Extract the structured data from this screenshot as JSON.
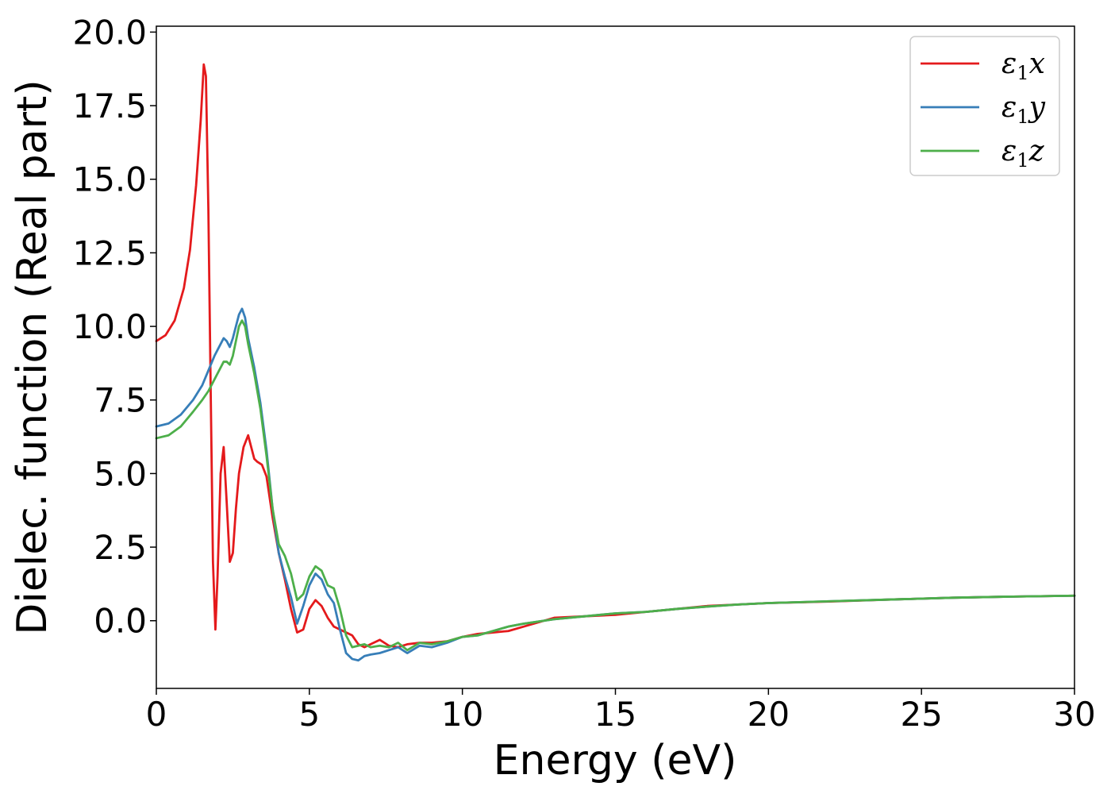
{
  "chart_data": {
    "type": "line",
    "title": "",
    "xlabel": "Energy (eV)",
    "ylabel": "Dielec. function (Real part)",
    "xlim": [
      0,
      30
    ],
    "ylim": [
      -2.3,
      20.2
    ],
    "xticks": [
      0,
      5,
      10,
      15,
      20,
      25,
      30
    ],
    "xtick_labels": [
      "0",
      "5",
      "10",
      "15",
      "20",
      "25",
      "30"
    ],
    "yticks": [
      0.0,
      2.5,
      5.0,
      7.5,
      10.0,
      12.5,
      15.0,
      17.5,
      20.0
    ],
    "ytick_labels": [
      "0.0",
      "2.5",
      "5.0",
      "7.5",
      "10.0",
      "12.5",
      "15.0",
      "17.5",
      "20.0"
    ],
    "grid": false,
    "legend_position": "top-right",
    "series": [
      {
        "name": "ε₁x",
        "legend_base": "ε",
        "legend_sub": "1",
        "legend_var": "x",
        "color": "#e41a1c",
        "x": [
          0,
          0.3,
          0.6,
          0.9,
          1.1,
          1.3,
          1.45,
          1.55,
          1.62,
          1.7,
          1.78,
          1.85,
          1.93,
          2.0,
          2.1,
          2.2,
          2.3,
          2.4,
          2.5,
          2.6,
          2.7,
          2.85,
          3.0,
          3.1,
          3.2,
          3.3,
          3.45,
          3.6,
          3.8,
          4.0,
          4.2,
          4.4,
          4.6,
          4.8,
          5.0,
          5.2,
          5.4,
          5.6,
          5.8,
          6.0,
          6.2,
          6.4,
          6.6,
          6.8,
          7.0,
          7.3,
          7.6,
          7.9,
          8.2,
          8.6,
          9.0,
          9.5,
          10.0,
          10.5,
          11.0,
          11.5,
          12.0,
          13.0,
          14.0,
          15.0,
          16.0,
          17.0,
          18.0,
          19.0,
          20.0,
          22.0,
          24.0,
          26.0,
          28.0,
          30.0
        ],
        "y": [
          9.5,
          9.7,
          10.2,
          11.3,
          12.6,
          14.8,
          17.0,
          18.9,
          18.5,
          14.0,
          7.5,
          2.0,
          -0.3,
          1.5,
          5.0,
          5.9,
          4.0,
          2.0,
          2.3,
          3.8,
          5.0,
          5.9,
          6.3,
          5.9,
          5.5,
          5.4,
          5.3,
          4.9,
          3.5,
          2.3,
          1.4,
          0.4,
          -0.4,
          -0.3,
          0.4,
          0.7,
          0.5,
          0.1,
          -0.2,
          -0.3,
          -0.4,
          -0.5,
          -0.8,
          -0.9,
          -0.8,
          -0.65,
          -0.85,
          -0.9,
          -0.8,
          -0.75,
          -0.75,
          -0.7,
          -0.55,
          -0.45,
          -0.4,
          -0.35,
          -0.2,
          0.1,
          0.15,
          0.2,
          0.3,
          0.4,
          0.5,
          0.55,
          0.6,
          0.65,
          0.72,
          0.78,
          0.82,
          0.85
        ]
      },
      {
        "name": "ε₁y",
        "legend_base": "ε",
        "legend_sub": "1",
        "legend_var": "y",
        "color": "#377eb8",
        "x": [
          0,
          0.4,
          0.8,
          1.2,
          1.5,
          1.7,
          1.9,
          2.1,
          2.2,
          2.3,
          2.4,
          2.5,
          2.6,
          2.7,
          2.8,
          2.9,
          3.0,
          3.2,
          3.4,
          3.6,
          3.8,
          4.0,
          4.2,
          4.4,
          4.6,
          4.8,
          5.0,
          5.2,
          5.4,
          5.6,
          5.8,
          6.0,
          6.2,
          6.4,
          6.6,
          6.8,
          7.0,
          7.3,
          7.6,
          7.9,
          8.2,
          8.6,
          9.0,
          9.5,
          10.0,
          10.5,
          11.0,
          11.5,
          12.0,
          13.0,
          14.0,
          15.0,
          16.0,
          17.0,
          18.0,
          19.0,
          20.0,
          22.0,
          24.0,
          26.0,
          28.0,
          30.0
        ],
        "y": [
          6.6,
          6.7,
          7.0,
          7.5,
          8.0,
          8.5,
          9.0,
          9.4,
          9.6,
          9.5,
          9.3,
          9.6,
          10.0,
          10.4,
          10.6,
          10.3,
          9.6,
          8.6,
          7.4,
          5.8,
          3.8,
          2.3,
          1.5,
          0.8,
          -0.1,
          0.5,
          1.2,
          1.6,
          1.4,
          0.9,
          0.6,
          -0.3,
          -1.1,
          -1.3,
          -1.35,
          -1.2,
          -1.15,
          -1.1,
          -1.0,
          -0.9,
          -1.1,
          -0.85,
          -0.9,
          -0.75,
          -0.55,
          -0.5,
          -0.35,
          -0.2,
          -0.1,
          0.05,
          0.15,
          0.25,
          0.3,
          0.4,
          0.48,
          0.55,
          0.6,
          0.66,
          0.72,
          0.78,
          0.82,
          0.85
        ]
      },
      {
        "name": "ε₁z",
        "legend_base": "ε",
        "legend_sub": "1",
        "legend_var": "z",
        "color": "#4daf4a",
        "x": [
          0,
          0.4,
          0.8,
          1.2,
          1.5,
          1.7,
          1.9,
          2.1,
          2.2,
          2.3,
          2.4,
          2.5,
          2.6,
          2.7,
          2.8,
          2.9,
          3.0,
          3.2,
          3.4,
          3.6,
          3.8,
          4.0,
          4.2,
          4.4,
          4.6,
          4.8,
          5.0,
          5.2,
          5.4,
          5.6,
          5.8,
          6.0,
          6.2,
          6.4,
          6.6,
          6.8,
          7.0,
          7.3,
          7.6,
          7.9,
          8.2,
          8.6,
          9.0,
          9.5,
          10.0,
          10.5,
          11.0,
          11.5,
          12.0,
          13.0,
          14.0,
          15.0,
          16.0,
          17.0,
          18.0,
          19.0,
          20.0,
          22.0,
          24.0,
          26.0,
          28.0,
          30.0
        ],
        "y": [
          6.2,
          6.3,
          6.6,
          7.1,
          7.5,
          7.8,
          8.2,
          8.6,
          8.8,
          8.8,
          8.7,
          9.0,
          9.5,
          10.0,
          10.2,
          10.0,
          9.4,
          8.4,
          7.2,
          5.6,
          3.8,
          2.6,
          2.2,
          1.6,
          0.7,
          0.9,
          1.5,
          1.85,
          1.7,
          1.2,
          1.1,
          0.4,
          -0.5,
          -0.9,
          -0.85,
          -0.8,
          -0.9,
          -0.85,
          -0.9,
          -0.75,
          -1.0,
          -0.75,
          -0.8,
          -0.7,
          -0.55,
          -0.5,
          -0.35,
          -0.2,
          -0.1,
          0.05,
          0.15,
          0.25,
          0.3,
          0.4,
          0.48,
          0.55,
          0.6,
          0.66,
          0.72,
          0.78,
          0.82,
          0.85
        ]
      }
    ]
  }
}
